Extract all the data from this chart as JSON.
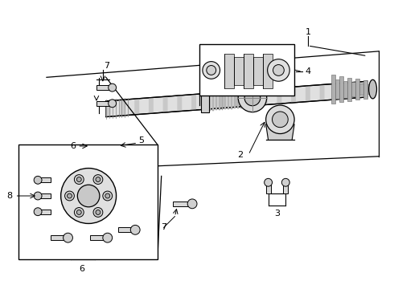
{
  "bg_color": "#ffffff",
  "line_color": "#000000",
  "shaft_color": "#e0e0e0",
  "dark_gray": "#aaaaaa",
  "mid_gray": "#cccccc",
  "light_gray": "#f0f0f0"
}
